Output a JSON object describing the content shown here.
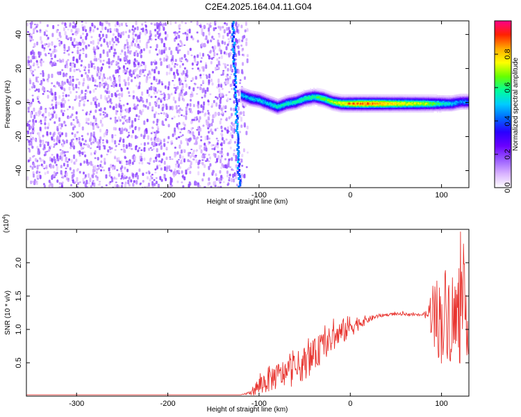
{
  "figure": {
    "title": "C2E4.2025.164.04.11.G04"
  },
  "chart_data": [
    {
      "type": "heatmap",
      "title": "C2E4.2025.164.04.11.G04",
      "xlabel": "Height of straight line (km)",
      "ylabel": "Frequency (Hz)",
      "xlim": [
        -355,
        130
      ],
      "ylim": [
        -50,
        48
      ],
      "xticks": [
        -300,
        -200,
        -100,
        0,
        100
      ],
      "yticks": [
        -40,
        -20,
        0,
        20,
        40
      ],
      "colorbar": {
        "label": "Normalized spectral amplitude",
        "ticks": [
          0.0,
          0.2,
          0.4,
          0.6,
          0.8
        ],
        "range": [
          0,
          1
        ],
        "colors": [
          "#ffffff",
          "#d9b3ff",
          "#9a5cff",
          "#6a00ff",
          "#2a00ff",
          "#0066ff",
          "#00ccff",
          "#00ff99",
          "#66ff00",
          "#ffff00",
          "#ffaa00",
          "#ff2200",
          "#ff0088"
        ]
      },
      "noise_region": {
        "x_range": [
          -355,
          -125
        ],
        "freq_range": [
          -50,
          48
        ],
        "amplitude": 0.15
      },
      "signal_track": [
        {
          "x": -120,
          "freq": 5,
          "amp": 0.45
        },
        {
          "x": -110,
          "freq": 3,
          "amp": 0.5
        },
        {
          "x": -100,
          "freq": 2,
          "amp": 0.5
        },
        {
          "x": -90,
          "freq": 0,
          "amp": 0.5
        },
        {
          "x": -80,
          "freq": -2,
          "amp": 0.55
        },
        {
          "x": -70,
          "freq": 0,
          "amp": 0.55
        },
        {
          "x": -60,
          "freq": 1,
          "amp": 0.55
        },
        {
          "x": -50,
          "freq": 3,
          "amp": 0.6
        },
        {
          "x": -40,
          "freq": 4,
          "amp": 0.6
        },
        {
          "x": -30,
          "freq": 3,
          "amp": 0.65
        },
        {
          "x": -20,
          "freq": 1,
          "amp": 0.7
        },
        {
          "x": -10,
          "freq": 0,
          "amp": 0.75
        },
        {
          "x": 0,
          "freq": 0,
          "amp": 0.8
        },
        {
          "x": 10,
          "freq": 0,
          "amp": 0.85
        },
        {
          "x": 20,
          "freq": 0,
          "amp": 0.85
        },
        {
          "x": 40,
          "freq": 0,
          "amp": 0.8
        },
        {
          "x": 60,
          "freq": 0,
          "amp": 0.75
        },
        {
          "x": 80,
          "freq": 0,
          "amp": 0.7
        },
        {
          "x": 90,
          "freq": 0,
          "amp": 0.65
        },
        {
          "x": 100,
          "freq": 0,
          "amp": 0.55
        },
        {
          "x": 110,
          "freq": 0,
          "amp": 0.5
        },
        {
          "x": 120,
          "freq": 1,
          "amp": 0.45
        },
        {
          "x": 130,
          "freq": 1,
          "amp": 0.45
        }
      ]
    },
    {
      "type": "line",
      "xlabel": "Height of straight line (km)",
      "ylabel": "SNR (10 * v/v)",
      "exponent_label": "(x10",
      "exponent_power": "4",
      "exponent_close": ")",
      "xlim": [
        -355,
        130
      ],
      "ylim": [
        0,
        2.5
      ],
      "xticks": [
        -300,
        -200,
        -100,
        0,
        100
      ],
      "yticks": [
        0.5,
        1.0,
        1.5,
        2.0
      ],
      "ytick_labels": [
        "0.5",
        "1.0",
        "1.5",
        "2.0"
      ],
      "line_color": "#e8342f",
      "series": [
        {
          "x": [
            -355,
            -300,
            -250,
            -200,
            -150,
            -120,
            -110,
            -100,
            -90,
            -80,
            -70,
            -60,
            -50,
            -40,
            -30,
            -20,
            -10,
            0,
            10,
            20,
            30,
            40,
            50,
            60,
            70,
            80,
            85,
            90,
            95,
            100,
            105,
            110,
            115,
            120,
            125,
            130
          ],
          "y": [
            0.02,
            0.02,
            0.02,
            0.02,
            0.02,
            0.02,
            0.05,
            0.15,
            0.25,
            0.3,
            0.35,
            0.4,
            0.5,
            0.6,
            0.75,
            0.85,
            0.95,
            1.05,
            1.1,
            1.15,
            1.2,
            1.22,
            1.23,
            1.23,
            1.22,
            1.22,
            1.22,
            1.3,
            1.2,
            1.1,
            1.3,
            1.2,
            1.1,
            1.2,
            1.3,
            1.2
          ],
          "envelope": [
            0,
            0,
            0,
            0,
            0,
            0,
            0.03,
            0.15,
            0.2,
            0.2,
            0.22,
            0.25,
            0.25,
            0.25,
            0.22,
            0.2,
            0.2,
            0.18,
            0.1,
            0.05,
            0.03,
            0.02,
            0.02,
            0.02,
            0.02,
            0.02,
            0.1,
            0.5,
            0.6,
            0.65,
            0.7,
            0.75,
            0.8,
            0.75,
            0.7,
            0.6
          ]
        }
      ]
    }
  ]
}
